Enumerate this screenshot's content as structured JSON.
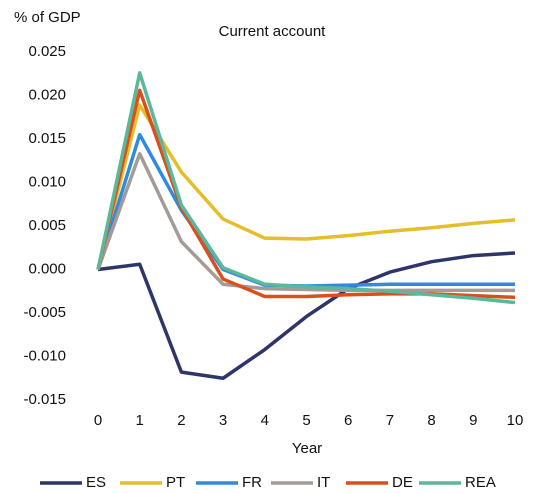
{
  "chart_data": {
    "type": "line",
    "title": "Current account",
    "y_label": "% of GDP",
    "x_label": "Year",
    "x": [
      0,
      1,
      2,
      3,
      4,
      5,
      6,
      7,
      8,
      9,
      10
    ],
    "xlim": [
      0,
      10
    ],
    "xticks": [
      0,
      1,
      2,
      3,
      4,
      5,
      6,
      7,
      8,
      9,
      10
    ],
    "ylim": [
      -0.015,
      0.025
    ],
    "yticks": [
      {
        "value": -0.015,
        "label": "-0.015"
      },
      {
        "value": -0.01,
        "label": "-0.010"
      },
      {
        "value": -0.005,
        "label": "-0.005"
      },
      {
        "value": 0,
        "label": "0.000"
      },
      {
        "value": 0.005,
        "label": "0.005"
      },
      {
        "value": 0.01,
        "label": "0.010"
      },
      {
        "value": 0.015,
        "label": "0.015"
      },
      {
        "value": 0.02,
        "label": "0.020"
      },
      {
        "value": 0.025,
        "label": "0.025"
      }
    ],
    "series": [
      {
        "name": "ES",
        "color": "#2e3568",
        "values": [
          0,
          0.0006,
          -0.0118,
          -0.0125,
          -0.0092,
          -0.0054,
          -0.0022,
          -0.0003,
          0.0009,
          0.0016,
          0.0019
        ]
      },
      {
        "name": "PT",
        "color": "#e6be2a",
        "values": [
          0,
          0.0189,
          0.0112,
          0.0058,
          0.0036,
          0.0035,
          0.0039,
          0.0044,
          0.0048,
          0.0053,
          0.0057
        ]
      },
      {
        "name": "FR",
        "color": "#2f8be0",
        "values": [
          0,
          0.0155,
          0.0068,
          0.0,
          -0.0018,
          -0.0019,
          -0.0018,
          -0.0017,
          -0.0017,
          -0.0017,
          -0.0017
        ]
      },
      {
        "name": "IT",
        "color": "#a39b95",
        "values": [
          0,
          0.0133,
          0.0032,
          -0.0017,
          -0.0022,
          -0.0023,
          -0.0024,
          -0.0024,
          -0.0024,
          -0.0024,
          -0.0024
        ]
      },
      {
        "name": "DE",
        "color": "#d9501e",
        "values": [
          0,
          0.0206,
          0.0071,
          -0.0011,
          -0.0031,
          -0.0031,
          -0.0029,
          -0.0028,
          -0.0028,
          -0.003,
          -0.0032
        ]
      },
      {
        "name": "REA",
        "color": "#5bb89a",
        "values": [
          0,
          0.0226,
          0.0074,
          0.0002,
          -0.0017,
          -0.002,
          -0.0022,
          -0.0025,
          -0.0029,
          -0.0033,
          -0.0038
        ]
      }
    ]
  }
}
